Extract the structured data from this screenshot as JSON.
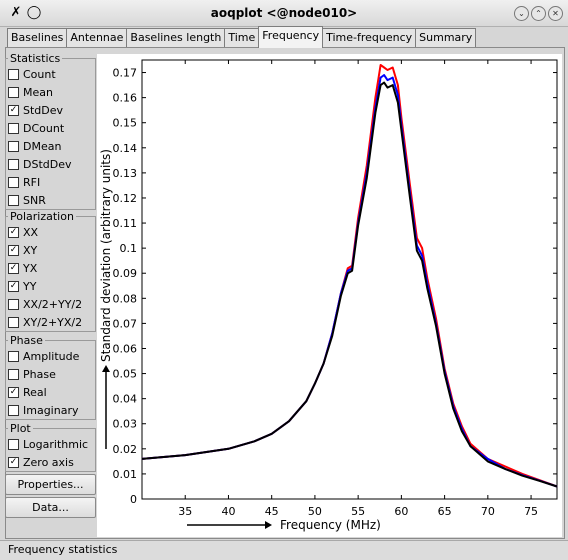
{
  "window": {
    "title": "aoqplot <@node010>"
  },
  "tabs": [
    "Baselines",
    "Antennae",
    "Baselines length",
    "Time",
    "Frequency",
    "Time-frequency",
    "Summary"
  ],
  "active_tab": "Frequency",
  "statistics": {
    "title": "Statistics",
    "items": [
      {
        "label": "Count",
        "checked": false
      },
      {
        "label": "Mean",
        "checked": false
      },
      {
        "label": "StdDev",
        "checked": true
      },
      {
        "label": "DCount",
        "checked": false
      },
      {
        "label": "DMean",
        "checked": false
      },
      {
        "label": "DStdDev",
        "checked": false
      },
      {
        "label": "RFI",
        "checked": false
      },
      {
        "label": "SNR",
        "checked": false
      }
    ]
  },
  "polarization": {
    "title": "Polarization",
    "items": [
      {
        "label": "XX",
        "checked": true
      },
      {
        "label": "XY",
        "checked": true
      },
      {
        "label": "YX",
        "checked": true
      },
      {
        "label": "YY",
        "checked": true
      },
      {
        "label": "XX/2+YY/2",
        "checked": false
      },
      {
        "label": "XY/2+YX/2",
        "checked": false
      }
    ]
  },
  "phase": {
    "title": "Phase",
    "items": [
      {
        "label": "Amplitude",
        "checked": false
      },
      {
        "label": "Phase",
        "checked": false
      },
      {
        "label": "Real",
        "checked": true
      },
      {
        "label": "Imaginary",
        "checked": false
      }
    ]
  },
  "plot": {
    "title": "Plot",
    "items": [
      {
        "label": "Logarithmic",
        "checked": false
      },
      {
        "label": "Zero axis",
        "checked": true
      }
    ]
  },
  "buttons": {
    "properties": "Properties...",
    "data": "Data..."
  },
  "statusbar": {
    "text": "Frequency statistics"
  },
  "chart_data": {
    "type": "line",
    "xlabel": "Frequency (MHz)",
    "ylabel": "Standard deviation (arbitrary units)",
    "xlim": [
      30,
      78
    ],
    "ylim": [
      0,
      0.175
    ],
    "xticks": [
      35,
      40,
      45,
      50,
      55,
      60,
      65,
      70,
      75
    ],
    "yticks": [
      0,
      0.01,
      0.02,
      0.03,
      0.04,
      0.05,
      0.06,
      0.07,
      0.08,
      0.09,
      0.1,
      0.11,
      0.12,
      0.13,
      0.14,
      0.15,
      0.16,
      0.17
    ],
    "grid": false,
    "series": [
      {
        "color": "#ff0000",
        "x": [
          30,
          35,
          40,
          43,
          45,
          47,
          49,
          50,
          51,
          52,
          53,
          53.8,
          54.3,
          55,
          56,
          57,
          57.6,
          58,
          58.4,
          59,
          59.6,
          60,
          61,
          61.8,
          62.4,
          63,
          64,
          65,
          66,
          67,
          68,
          70,
          72,
          74,
          76,
          78
        ],
        "y": [
          0.016,
          0.0175,
          0.02,
          0.023,
          0.026,
          0.031,
          0.039,
          0.046,
          0.054,
          0.066,
          0.082,
          0.092,
          0.093,
          0.112,
          0.133,
          0.16,
          0.173,
          0.172,
          0.171,
          0.172,
          0.165,
          0.152,
          0.125,
          0.104,
          0.1,
          0.088,
          0.072,
          0.052,
          0.038,
          0.029,
          0.022,
          0.016,
          0.013,
          0.01,
          0.0075,
          0.005
        ]
      },
      {
        "color": "#0000ff",
        "x": [
          30,
          35,
          40,
          43,
          45,
          47,
          49,
          50,
          51,
          52,
          53,
          53.8,
          54.3,
          55,
          56,
          57,
          57.6,
          58,
          58.4,
          59,
          59.6,
          60,
          61,
          61.8,
          62.4,
          63,
          64,
          65,
          66,
          67,
          68,
          70,
          72,
          74,
          76,
          78
        ],
        "y": [
          0.016,
          0.0175,
          0.02,
          0.023,
          0.026,
          0.031,
          0.039,
          0.046,
          0.054,
          0.066,
          0.082,
          0.091,
          0.092,
          0.11,
          0.13,
          0.156,
          0.168,
          0.169,
          0.167,
          0.168,
          0.161,
          0.149,
          0.122,
          0.101,
          0.097,
          0.086,
          0.07,
          0.051,
          0.037,
          0.028,
          0.021,
          0.016,
          0.012,
          0.0095,
          0.0073,
          0.005
        ]
      },
      {
        "color": "#000000",
        "x": [
          30,
          35,
          40,
          43,
          45,
          47,
          49,
          50,
          51,
          52,
          53,
          53.8,
          54.3,
          55,
          56,
          57,
          57.6,
          58,
          58.4,
          59,
          59.6,
          60,
          61,
          61.8,
          62.4,
          63,
          64,
          65,
          66,
          67,
          68,
          70,
          72,
          74,
          76,
          78
        ],
        "y": [
          0.016,
          0.0175,
          0.02,
          0.023,
          0.026,
          0.031,
          0.039,
          0.046,
          0.054,
          0.065,
          0.081,
          0.09,
          0.091,
          0.109,
          0.128,
          0.154,
          0.165,
          0.166,
          0.164,
          0.165,
          0.158,
          0.147,
          0.12,
          0.099,
          0.095,
          0.084,
          0.069,
          0.05,
          0.036,
          0.027,
          0.021,
          0.015,
          0.012,
          0.0093,
          0.0072,
          0.005
        ]
      }
    ]
  }
}
